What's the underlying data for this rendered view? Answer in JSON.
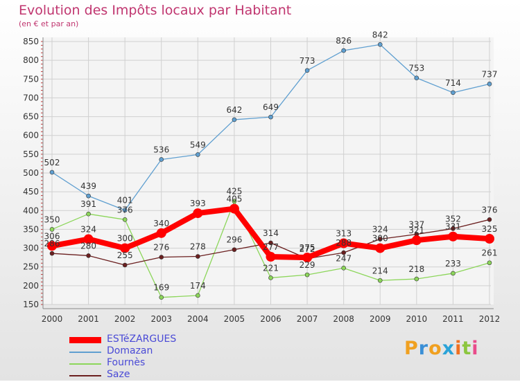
{
  "title": "Evolution des Impôts locaux par Habitant",
  "subtitle": "(en € et par an)",
  "logo": {
    "text": "Proxiti",
    "letters": [
      "P",
      "r",
      "o",
      "x",
      "i",
      "t",
      "i"
    ],
    "colors": [
      "#f0a020",
      "#3a8fd6",
      "#f0a020",
      "#2aa3d8",
      "#f07020",
      "#8cc63f",
      "#e94b8a"
    ]
  },
  "chart_data": {
    "type": "line",
    "x": [
      "2000",
      "2001",
      "2002",
      "2003",
      "2004",
      "2005",
      "2006",
      "2007",
      "2008",
      "2009",
      "2010",
      "2011",
      "2012"
    ],
    "ylim": [
      150,
      850
    ],
    "yticks": [
      150,
      200,
      250,
      300,
      350,
      400,
      450,
      500,
      550,
      600,
      650,
      700,
      750,
      800,
      850
    ],
    "grid": true,
    "legend_position": "bottom-left",
    "series": [
      {
        "name": "ESTéZARGUES",
        "color": "#ff0000",
        "values": [
          306,
          324,
          300,
          340,
          393,
          405,
          277,
          275,
          313,
          300,
          321,
          331,
          325
        ]
      },
      {
        "name": "Domazan",
        "color": "#5f9fd0",
        "values": [
          502,
          439,
          401,
          536,
          549,
          642,
          649,
          773,
          826,
          842,
          753,
          714,
          737
        ]
      },
      {
        "name": "Fournès",
        "color": "#8cd65a",
        "values": [
          350,
          391,
          376,
          169,
          174,
          425,
          221,
          229,
          247,
          214,
          218,
          233,
          261
        ]
      },
      {
        "name": "Saze",
        "color": "#6b1f1f",
        "values": [
          286,
          280,
          255,
          276,
          278,
          296,
          314,
          272,
          288,
          324,
          337,
          352,
          376
        ]
      }
    ]
  }
}
